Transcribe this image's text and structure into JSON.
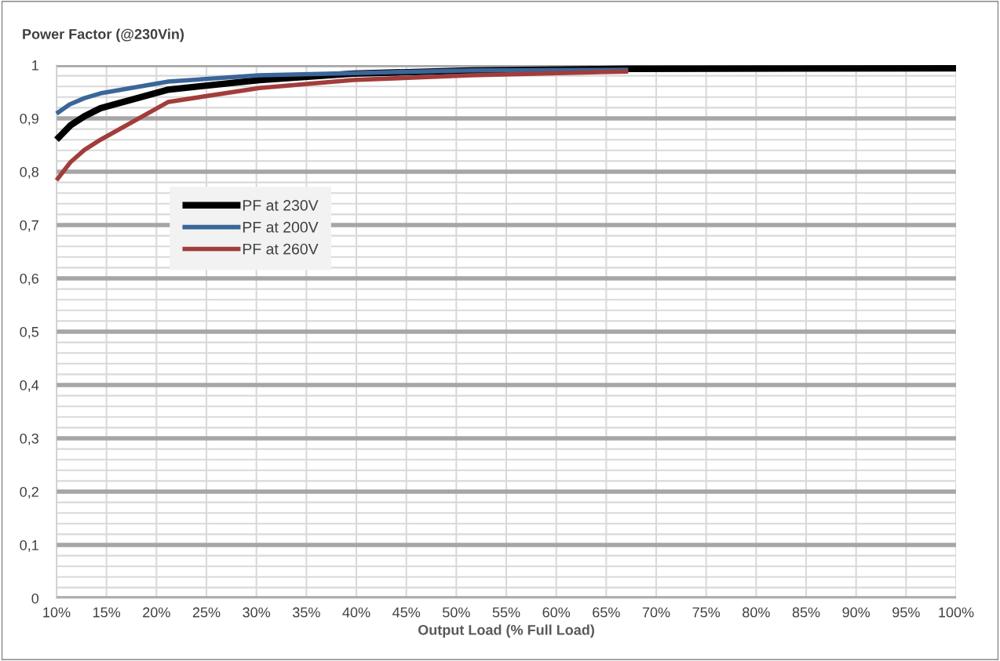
{
  "chart_data": {
    "type": "line",
    "title": "Power Factor (@230Vin)",
    "xlabel": "Output Load (% Full Load)",
    "xlim": [
      10,
      100
    ],
    "xticks": [
      {
        "value": 10,
        "label": "10%"
      },
      {
        "value": 15,
        "label": "15%"
      },
      {
        "value": 20,
        "label": "20%"
      },
      {
        "value": 25,
        "label": "25%"
      },
      {
        "value": 30,
        "label": "30%"
      },
      {
        "value": 35,
        "label": "35%"
      },
      {
        "value": 40,
        "label": "40%"
      },
      {
        "value": 45,
        "label": "45%"
      },
      {
        "value": 50,
        "label": "50%"
      },
      {
        "value": 55,
        "label": "55%"
      },
      {
        "value": 60,
        "label": "60%"
      },
      {
        "value": 65,
        "label": "65%"
      },
      {
        "value": 70,
        "label": "70%"
      },
      {
        "value": 75,
        "label": "75%"
      },
      {
        "value": 80,
        "label": "80%"
      },
      {
        "value": 85,
        "label": "85%"
      },
      {
        "value": 90,
        "label": "90%"
      },
      {
        "value": 95,
        "label": "95%"
      },
      {
        "value": 100,
        "label": "100%"
      }
    ],
    "ylim": [
      0,
      1
    ],
    "yticks": [
      0,
      {
        "value": 0.02,
        "label": null
      },
      {
        "value": 0.04,
        "label": null
      },
      {
        "value": 0.06,
        "label": null
      },
      {
        "value": 0.08,
        "label": null
      },
      {
        "value": 0.1,
        "label": "0,1"
      },
      {
        "value": 0.12,
        "label": null
      },
      {
        "value": 0.14,
        "label": null
      },
      {
        "value": 0.16,
        "label": null
      },
      {
        "value": 0.18,
        "label": null
      },
      {
        "value": 0.2,
        "label": "0,2"
      },
      {
        "value": 0.22,
        "label": null
      },
      {
        "value": 0.24,
        "label": null
      },
      {
        "value": 0.26,
        "label": null
      },
      {
        "value": 0.28,
        "label": null
      },
      {
        "value": 0.3,
        "label": "0,3"
      },
      {
        "value": 0.32,
        "label": null
      },
      {
        "value": 0.34,
        "label": null
      },
      {
        "value": 0.36,
        "label": null
      },
      {
        "value": 0.38,
        "label": null
      },
      {
        "value": 0.4,
        "label": "0,4"
      },
      {
        "value": 0.42,
        "label": null
      },
      {
        "value": 0.44,
        "label": null
      },
      {
        "value": 0.46,
        "label": null
      },
      {
        "value": 0.48,
        "label": null
      },
      {
        "value": 0.5,
        "label": "0,5"
      },
      {
        "value": 0.52,
        "label": null
      },
      {
        "value": 0.54,
        "label": null
      },
      {
        "value": 0.56,
        "label": null
      },
      {
        "value": 0.58,
        "label": null
      },
      {
        "value": 0.6,
        "label": "0,6"
      },
      {
        "value": 0.62,
        "label": null
      },
      {
        "value": 0.64,
        "label": null
      },
      {
        "value": 0.66,
        "label": null
      },
      {
        "value": 0.68,
        "label": null
      },
      {
        "value": 0.7,
        "label": "0,7"
      },
      {
        "value": 0.72,
        "label": null
      },
      {
        "value": 0.74,
        "label": null
      },
      {
        "value": 0.76,
        "label": null
      },
      {
        "value": 0.78,
        "label": null
      },
      {
        "value": 0.8,
        "label": "0,8"
      },
      {
        "value": 0.82,
        "label": null
      },
      {
        "value": 0.84,
        "label": null
      },
      {
        "value": 0.86,
        "label": null
      },
      {
        "value": 0.88,
        "label": null
      },
      {
        "value": 0.9,
        "label": "0,9"
      },
      {
        "value": 0.92,
        "label": null
      },
      {
        "value": 0.94,
        "label": null
      },
      {
        "value": 0.96,
        "label": null
      },
      {
        "value": 0.98,
        "label": null
      },
      1
    ],
    "grid": true,
    "legend": "top left",
    "marker": "none",
    "line_style": "solid",
    "series": [
      {
        "name": "PF at 230V",
        "color": "#000000",
        "x": [
          10,
          11.4,
          12.8,
          14.4,
          21.2,
          30.3,
          39.7,
          51.5,
          67.2,
          100
        ],
        "values": [
          0.86,
          0.887,
          0.904,
          0.919,
          0.954,
          0.972,
          0.984,
          0.99,
          0.993,
          0.994
        ]
      },
      {
        "name": "PF at 200V",
        "color": "#3a6699",
        "x": [
          10,
          11.3,
          12.8,
          14.4,
          21.2,
          30.3,
          39.7,
          51.5,
          67.2
        ],
        "values": [
          0.909,
          0.926,
          0.938,
          0.947,
          0.969,
          0.981,
          0.985,
          0.99,
          0.991
        ]
      },
      {
        "name": "PF at 260V",
        "color": "#a23d3b",
        "x": [
          10,
          11.4,
          12.8,
          14.4,
          21.2,
          30.3,
          39.7,
          51.5,
          67.2
        ],
        "values": [
          0.784,
          0.818,
          0.841,
          0.86,
          0.931,
          0.957,
          0.972,
          0.981,
          0.988
        ]
      }
    ]
  }
}
